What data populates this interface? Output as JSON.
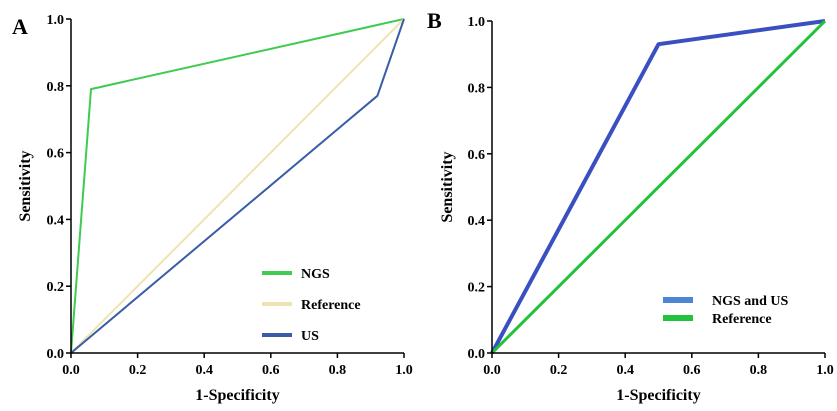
{
  "chart_data": [
    {
      "panel_label": "A",
      "type": "line",
      "xlabel": "1-Specificity",
      "ylabel": "Sensitivity",
      "xlim": [
        0,
        1
      ],
      "ylim": [
        0,
        1
      ],
      "xticks": [
        "0.0",
        "0.2",
        "0.4",
        "0.6",
        "0.8",
        "1.0"
      ],
      "yticks": [
        "0.0",
        "0.2",
        "0.4",
        "0.6",
        "0.8",
        "1.0"
      ],
      "grid": false,
      "legend_position": "bottom-right",
      "series": [
        {
          "name": "NGS",
          "color": "#3ecb4f",
          "x": [
            0,
            0.06,
            1
          ],
          "y": [
            0,
            0.79,
            1
          ]
        },
        {
          "name": "Reference",
          "color": "#efe4b0",
          "x": [
            0,
            1
          ],
          "y": [
            0,
            1
          ]
        },
        {
          "name": "US",
          "color": "#3a5ca8",
          "x": [
            0,
            0.92,
            1
          ],
          "y": [
            0,
            0.77,
            1
          ]
        }
      ]
    },
    {
      "panel_label": "B",
      "type": "line",
      "xlabel": "1-Specificity",
      "ylabel": "Sensitivity",
      "xlim": [
        0,
        1
      ],
      "ylim": [
        0,
        1
      ],
      "xticks": [
        "0.0",
        "0.2",
        "0.4",
        "0.6",
        "0.8",
        "1.0"
      ],
      "yticks": [
        "0.0",
        "0.2",
        "0.4",
        "0.6",
        "0.8",
        "1.0"
      ],
      "grid": false,
      "legend_position": "bottom-right",
      "series": [
        {
          "name": "NGS and US",
          "color": "#3a4fc0",
          "legend_color": "#4a86d4",
          "x": [
            0,
            0.5,
            1
          ],
          "y": [
            0,
            0.93,
            1
          ]
        },
        {
          "name": "Reference",
          "color": "#22c23a",
          "x": [
            0,
            1
          ],
          "y": [
            0,
            1
          ]
        }
      ]
    }
  ]
}
